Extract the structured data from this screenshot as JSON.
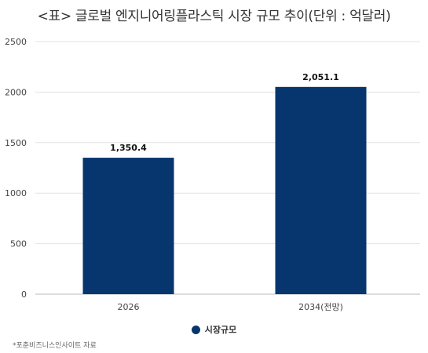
{
  "title": "<표> 글로벌 엔지니어링플라스틱 시장 규모 추이(단위 : 억달러)",
  "source_note": "*포춘비즈니스인사이트 자료",
  "colors": {
    "bar": "#07366f",
    "grid": "#e3e3e3",
    "axis": "#bbbbbb"
  },
  "chart_data": {
    "type": "bar",
    "title": "<표> 글로벌 엔지니어링플라스틱 시장 규모 추이(단위 : 억달러)",
    "categories": [
      "2026",
      "2034(전망)"
    ],
    "series": [
      {
        "name": "시장규모",
        "values": [
          1350.4,
          2051.1
        ],
        "data_labels": [
          "1,350.4",
          "2,051.1"
        ]
      }
    ],
    "xlabel": "",
    "ylabel": "",
    "ylim": [
      0,
      2500
    ],
    "yticks": [
      0,
      500,
      1000,
      1500,
      2000,
      2500
    ],
    "grid": true,
    "legend": "bottom-center"
  }
}
